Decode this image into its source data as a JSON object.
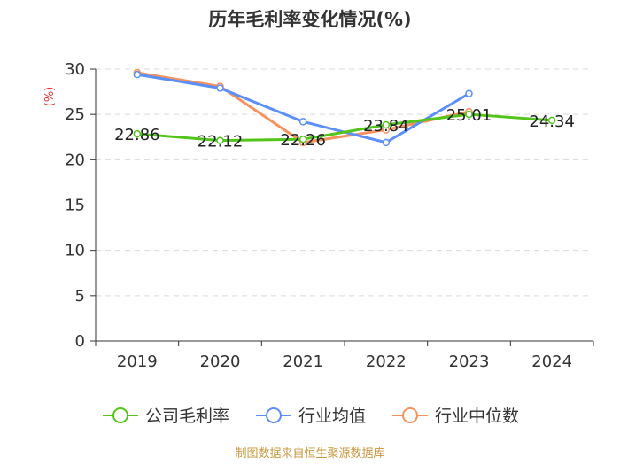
{
  "chart_data": {
    "type": "line",
    "title": "历年毛利率变化情况(%)",
    "ylabel": "(%)",
    "xlabel": "",
    "categories": [
      "2019",
      "2020",
      "2021",
      "2022",
      "2023",
      "2024"
    ],
    "ylim": [
      0,
      30
    ],
    "yticks": [
      0,
      5,
      10,
      15,
      20,
      25,
      30
    ],
    "grid": true,
    "legend_position": "bottom",
    "series": [
      {
        "name": "公司毛利率",
        "color": "#52c41a",
        "values": [
          22.86,
          22.12,
          22.26,
          23.84,
          25.01,
          24.34
        ],
        "labels": [
          "22.86",
          "22.12",
          "22.26",
          "23.84",
          "25.01",
          "24.34"
        ]
      },
      {
        "name": "行业均值",
        "color": "#5b8ff9",
        "values": [
          29.4,
          27.9,
          24.2,
          21.9,
          27.3,
          null
        ]
      },
      {
        "name": "行业中位数",
        "color": "#f6925e",
        "values": [
          29.6,
          28.1,
          21.9,
          23.3,
          25.3,
          null
        ]
      }
    ]
  },
  "source": "制图数据来自恒生聚源数据库"
}
